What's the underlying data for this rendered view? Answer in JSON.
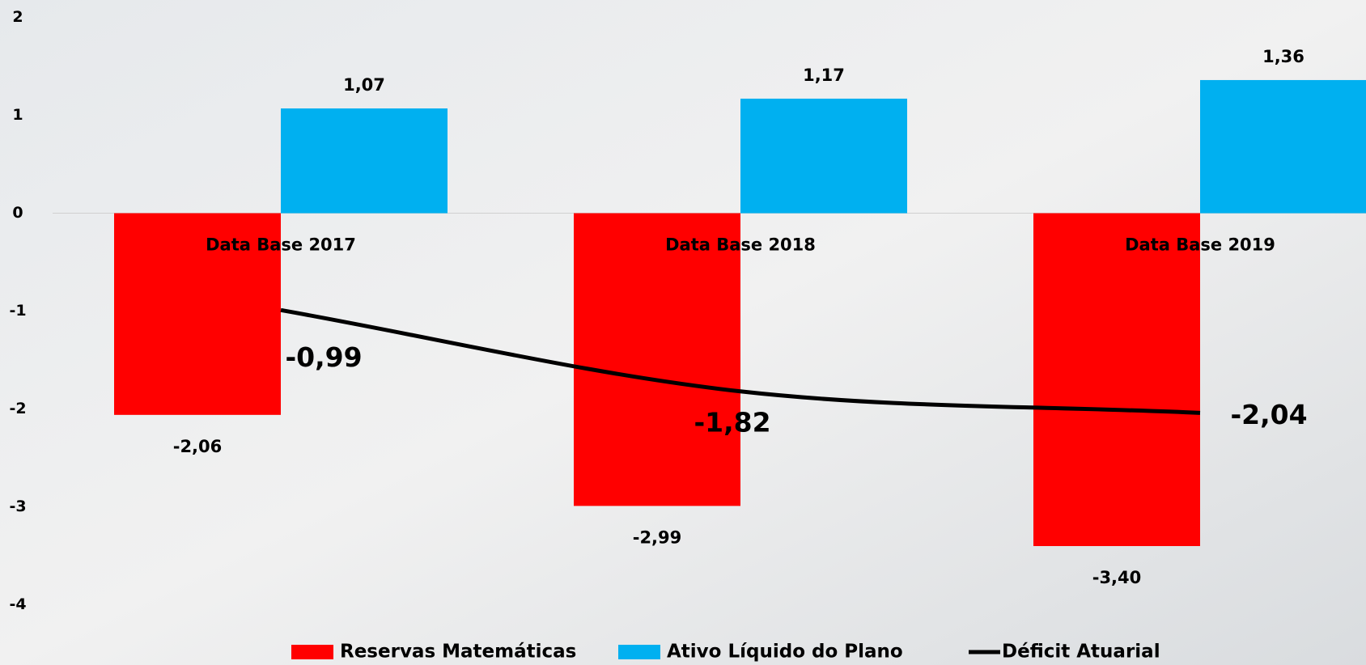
{
  "chart_data": {
    "type": "bar",
    "categories": [
      "Data Base 2017",
      "Data Base 2018",
      "Data Base 2019"
    ],
    "series": [
      {
        "name": "Reservas Matemáticas",
        "color": "#ff0000",
        "values": [
          -2.06,
          -2.99,
          -3.4
        ],
        "value_labels": [
          "-2,06",
          "-2,99",
          "-3,40"
        ]
      },
      {
        "name": "Ativo Líquido do Plano",
        "color": "#00b0f0",
        "values": [
          1.07,
          1.17,
          1.36
        ],
        "value_labels": [
          "1,07",
          "1,17",
          "1,36"
        ]
      },
      {
        "name": "Déficit Atuarial",
        "type": "line",
        "color": "#000000",
        "values": [
          -0.99,
          -1.82,
          -2.04
        ],
        "value_labels": [
          "-0,99",
          "-1,82",
          "-2,04"
        ]
      }
    ],
    "ylim": [
      -4,
      2
    ],
    "yticks": [
      2,
      1,
      0,
      -1,
      -2,
      -3,
      -4
    ],
    "grid": false
  }
}
